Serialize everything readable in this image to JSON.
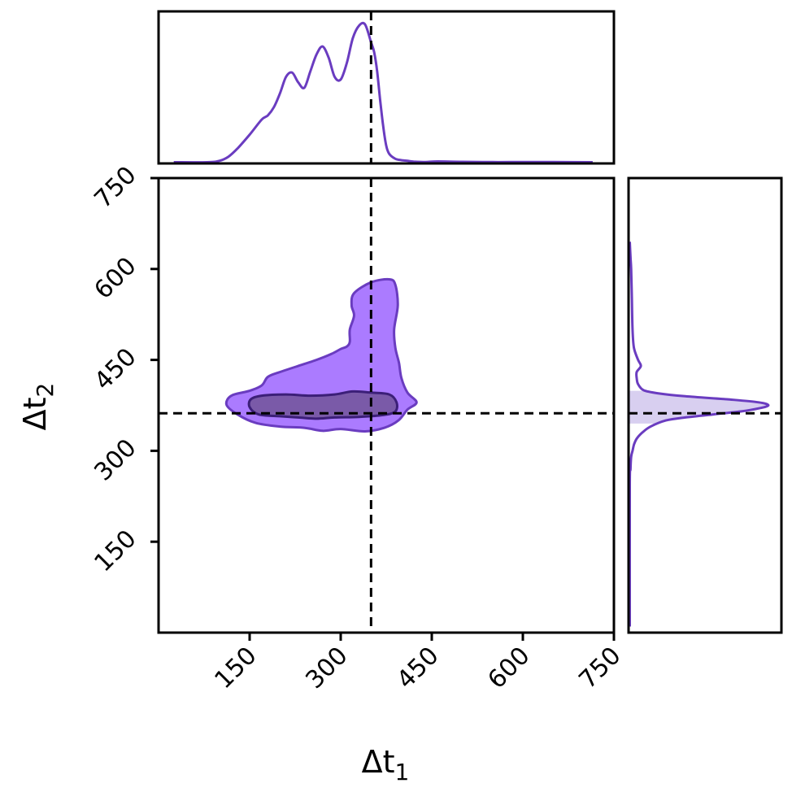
{
  "chart_data": {
    "type": "corner",
    "xlabel": "Δt",
    "xlabel_sub": "1",
    "ylabel": "Δt",
    "ylabel_sub": "2",
    "xlim": [
      0,
      750
    ],
    "ylim": [
      0,
      750
    ],
    "x_ticks": [
      150,
      300,
      450,
      600,
      750
    ],
    "y_ticks": [
      150,
      300,
      450,
      600,
      750
    ],
    "x_tick_labels": [
      "150",
      "300",
      "450",
      "600",
      "750"
    ],
    "y_tick_labels": [
      "150",
      "300",
      "450",
      "600",
      "750"
    ],
    "truth": {
      "x": 350,
      "y": 362
    },
    "colors": {
      "line": "#6a3cc0",
      "fill_outer": "#ab7bff",
      "fill_inner": "#7a5aa8",
      "inner_edge": "#3c1f78",
      "truth_line": "#000000",
      "band": "#d8cff0"
    },
    "contour_outer": [
      [
        120,
        391
      ],
      [
        150,
        399
      ],
      [
        170,
        408
      ],
      [
        180,
        422
      ],
      [
        200,
        430
      ],
      [
        230,
        440
      ],
      [
        260,
        450
      ],
      [
        285,
        460
      ],
      [
        300,
        468
      ],
      [
        310,
        472
      ],
      [
        315,
        480
      ],
      [
        315,
        500
      ],
      [
        322,
        523
      ],
      [
        318,
        540
      ],
      [
        322,
        560
      ],
      [
        350,
        578
      ],
      [
        380,
        583
      ],
      [
        390,
        574
      ],
      [
        394,
        540
      ],
      [
        388,
        500
      ],
      [
        390,
        470
      ],
      [
        396,
        445
      ],
      [
        400,
        420
      ],
      [
        410,
        396
      ],
      [
        425,
        380
      ],
      [
        410,
        368
      ],
      [
        395,
        350
      ],
      [
        372,
        338
      ],
      [
        340,
        332
      ],
      [
        300,
        336
      ],
      [
        270,
        333
      ],
      [
        240,
        338
      ],
      [
        200,
        340
      ],
      [
        160,
        346
      ],
      [
        130,
        360
      ],
      [
        112,
        376
      ]
    ],
    "contour_inner": [
      [
        150,
        372
      ],
      [
        165,
        360
      ],
      [
        200,
        357
      ],
      [
        230,
        355
      ],
      [
        260,
        353
      ],
      [
        290,
        355
      ],
      [
        330,
        356
      ],
      [
        370,
        359
      ],
      [
        390,
        365
      ],
      [
        392,
        380
      ],
      [
        380,
        393
      ],
      [
        350,
        396
      ],
      [
        320,
        398
      ],
      [
        290,
        393
      ],
      [
        250,
        391
      ],
      [
        210,
        393
      ],
      [
        170,
        391
      ],
      [
        152,
        385
      ]
    ],
    "marginal_x": {
      "x": [
        25,
        80,
        100,
        115,
        130,
        150,
        170,
        180,
        190,
        200,
        210,
        220,
        230,
        240,
        250,
        260,
        270,
        280,
        290,
        300,
        310,
        320,
        330,
        340,
        350,
        355,
        360,
        365,
        370,
        375,
        380,
        390,
        400,
        410,
        420,
        440,
        460,
        500,
        550,
        600,
        650,
        715
      ],
      "density": [
        0,
        0,
        0.01,
        0.04,
        0.1,
        0.2,
        0.31,
        0.34,
        0.4,
        0.5,
        0.62,
        0.65,
        0.58,
        0.54,
        0.66,
        0.78,
        0.84,
        0.76,
        0.62,
        0.6,
        0.72,
        0.9,
        0.99,
        1.0,
        0.87,
        0.8,
        0.66,
        0.45,
        0.26,
        0.12,
        0.06,
        0.025,
        0.015,
        0.01,
        0.005,
        0.002,
        0.006,
        0.003,
        0.001,
        0.002,
        0.001,
        0
      ]
    },
    "marginal_y": {
      "y": [
        10,
        240,
        270,
        290,
        300,
        310,
        320,
        330,
        340,
        350,
        355,
        360,
        365,
        370,
        375,
        380,
        385,
        390,
        395,
        400,
        410,
        420,
        430,
        440,
        450,
        470,
        500,
        550,
        600,
        620,
        645
      ],
      "density": [
        0,
        0,
        0.005,
        0.01,
        0.02,
        0.03,
        0.05,
        0.09,
        0.15,
        0.26,
        0.4,
        0.6,
        0.8,
        0.93,
        1.0,
        0.93,
        0.7,
        0.4,
        0.2,
        0.1,
        0.06,
        0.05,
        0.05,
        0.08,
        0.06,
        0.03,
        0.02,
        0.015,
        0.01,
        0.005,
        0
      ]
    },
    "marginal_y_band": [
      345,
      399
    ]
  }
}
